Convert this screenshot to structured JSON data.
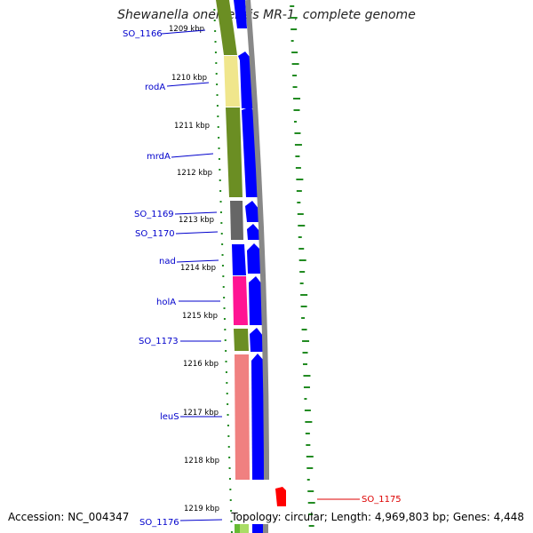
{
  "title": "Shewanella oneidensis MR-1, complete genome",
  "accession": "Accession: NC_004347",
  "summary": "Topology: circular; Length: 4,969,803 bp; Genes: 4,448",
  "ticks": [
    "1209 kbp",
    "1210 kbp",
    "1211 kbp",
    "1212 kbp",
    "1213 kbp",
    "1214 kbp",
    "1215 kbp",
    "1216 kbp",
    "1217 kbp",
    "1218 kbp",
    "1219 kbp"
  ],
  "genes": [
    {
      "label": "SO_1166",
      "color": "#0000cc"
    },
    {
      "label": "rodA",
      "color": "#0000cc"
    },
    {
      "label": "mrdA",
      "color": "#0000cc"
    },
    {
      "label": "SO_1169",
      "color": "#0000cc"
    },
    {
      "label": "SO_1170",
      "color": "#0000cc"
    },
    {
      "label": "nad",
      "color": "#0000cc"
    },
    {
      "label": "holA",
      "color": "#0000cc"
    },
    {
      "label": "SO_1173",
      "color": "#0000cc"
    },
    {
      "label": "leuS",
      "color": "#0000cc"
    },
    {
      "label": "SO_1175",
      "color": "#dd0000"
    },
    {
      "label": "SO_1176",
      "color": "#0000cc"
    }
  ],
  "colors": {
    "cog_olive": "#6b8e23",
    "cog_yellow": "#f0e68c",
    "cog_gray": "#666666",
    "cog_blue": "#0000ff",
    "cog_pink": "#ff1493",
    "cog_salmon": "#f08080",
    "forward_arrow": "#0000ff",
    "reverse_arrow": "#ff0000",
    "backbone": "#888888",
    "gc_plot": "#228b22"
  }
}
